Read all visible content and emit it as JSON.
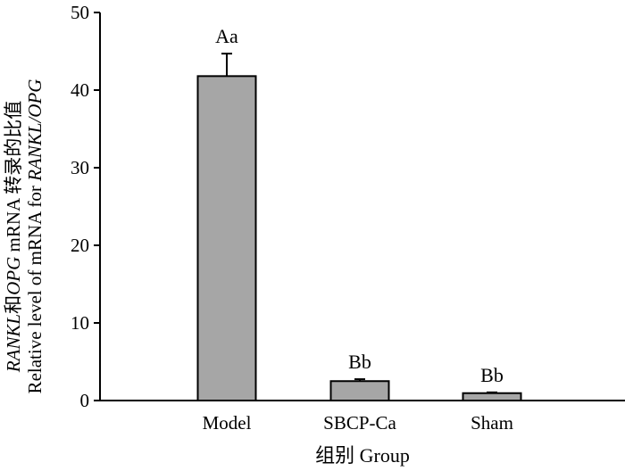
{
  "chart_data": {
    "type": "bar",
    "categories": [
      "Model",
      "SBCP-Ca",
      "Sham"
    ],
    "values": [
      41.8,
      2.5,
      0.95
    ],
    "error": [
      2.9,
      0.25,
      0.1
    ],
    "annotations": [
      "Aa",
      "Bb",
      "Bb"
    ],
    "xlabel": "组别 Group",
    "ylabel_line1": {
      "italic1": "RANKL",
      "mid": "和",
      "italic2": "OPG",
      "rest": " mRNA 转录的比值"
    },
    "ylabel_line2": {
      "prefix": "Relative level of mRNA for ",
      "italic": "RANKL/OPG"
    },
    "ylim": [
      0,
      50
    ],
    "yticks": [
      "0",
      "10",
      "20",
      "30",
      "40",
      "50"
    ],
    "grid": false,
    "bar_color": "#a6a6a6"
  }
}
